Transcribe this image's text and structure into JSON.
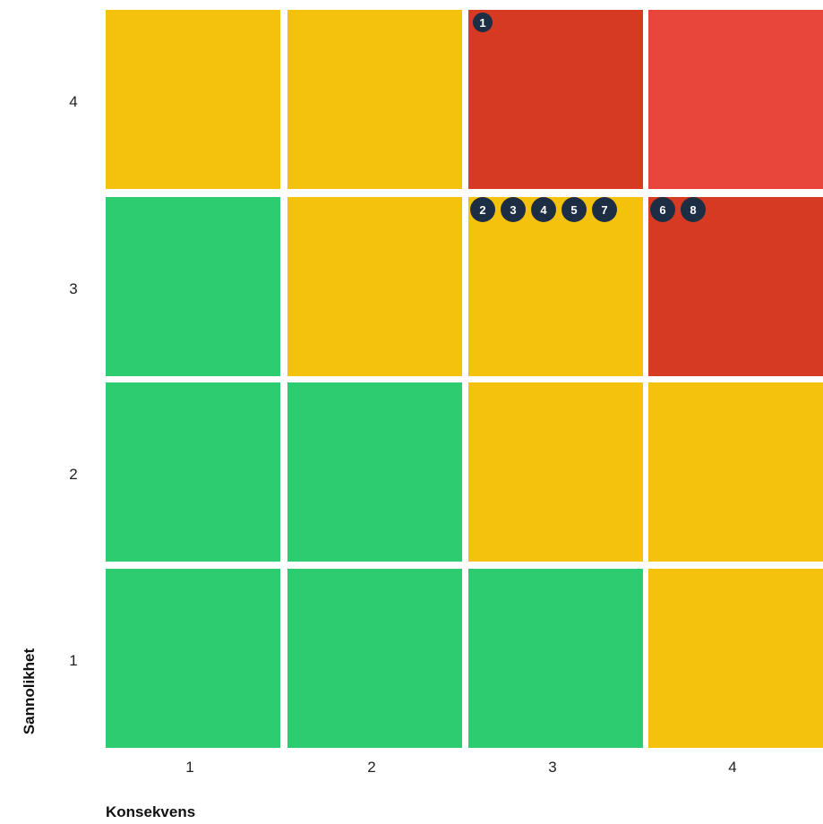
{
  "chart_data": {
    "type": "heatmap",
    "xlabel": "Konsekvens",
    "ylabel": "Sannolikhet",
    "x_ticks": [
      "1",
      "2",
      "3",
      "4"
    ],
    "y_ticks": [
      "1",
      "2",
      "3",
      "4"
    ],
    "colors": {
      "green": "#2ecc71",
      "yellow": "#f4c20d",
      "red": "#d63a22",
      "red_light": "#e8463a",
      "marker": "#1d2d44"
    },
    "cells": [
      {
        "x": 1,
        "y": 4,
        "level": "yellow"
      },
      {
        "x": 2,
        "y": 4,
        "level": "yellow"
      },
      {
        "x": 3,
        "y": 4,
        "level": "red"
      },
      {
        "x": 4,
        "y": 4,
        "level": "red_light"
      },
      {
        "x": 1,
        "y": 3,
        "level": "green"
      },
      {
        "x": 2,
        "y": 3,
        "level": "yellow"
      },
      {
        "x": 3,
        "y": 3,
        "level": "yellow"
      },
      {
        "x": 4,
        "y": 3,
        "level": "red"
      },
      {
        "x": 1,
        "y": 2,
        "level": "green"
      },
      {
        "x": 2,
        "y": 2,
        "level": "green"
      },
      {
        "x": 3,
        "y": 2,
        "level": "yellow"
      },
      {
        "x": 4,
        "y": 2,
        "level": "yellow"
      },
      {
        "x": 1,
        "y": 1,
        "level": "green"
      },
      {
        "x": 2,
        "y": 1,
        "level": "green"
      },
      {
        "x": 3,
        "y": 1,
        "level": "green"
      },
      {
        "x": 4,
        "y": 1,
        "level": "yellow"
      }
    ],
    "markers": [
      {
        "x": 3,
        "y": 4,
        "ids": [
          "1"
        ]
      },
      {
        "x": 3,
        "y": 3,
        "ids": [
          "2",
          "3",
          "4",
          "5",
          "7"
        ]
      },
      {
        "x": 4,
        "y": 3,
        "ids": [
          "6",
          "8"
        ]
      }
    ]
  }
}
